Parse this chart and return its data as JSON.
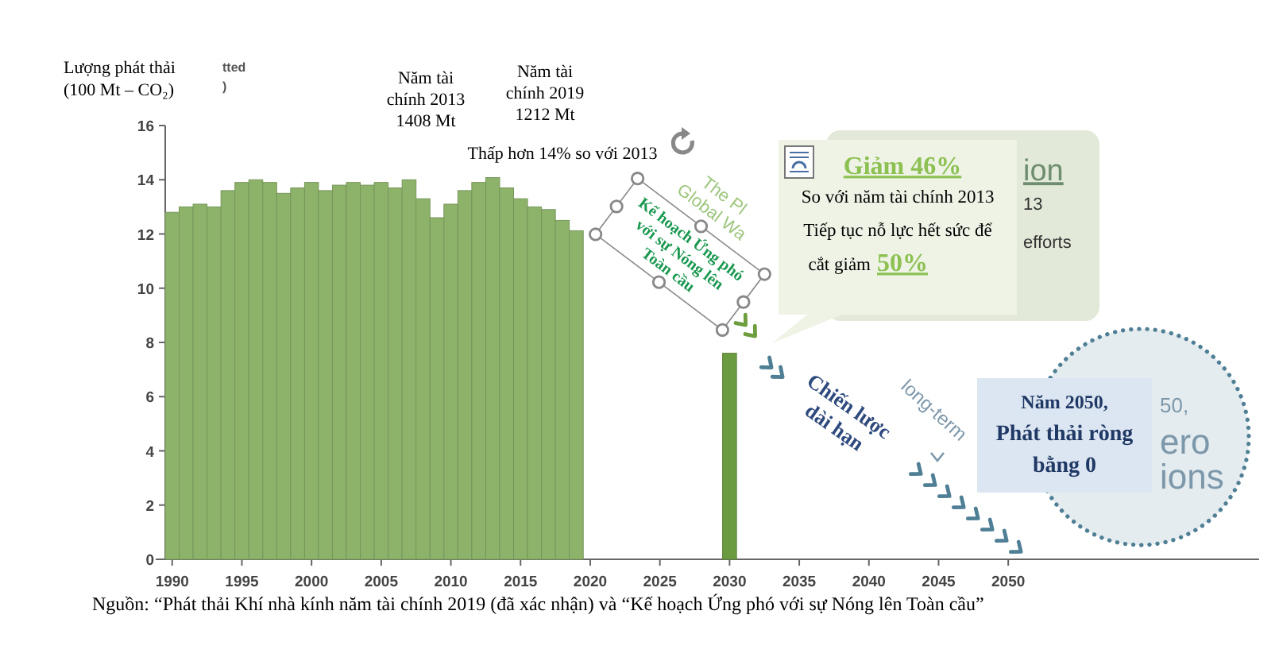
{
  "chart_data": {
    "type": "bar",
    "ylabel": "Lượng phát thải\n(100 Mt – CO₂)",
    "x": [
      1990,
      1991,
      1992,
      1993,
      1994,
      1995,
      1996,
      1997,
      1998,
      1999,
      2000,
      2001,
      2002,
      2003,
      2004,
      2005,
      2006,
      2007,
      2008,
      2009,
      2010,
      2011,
      2012,
      2013,
      2014,
      2015,
      2016,
      2017,
      2018,
      2019,
      2030
    ],
    "values": [
      12.8,
      13.0,
      13.1,
      13.0,
      13.6,
      13.9,
      14.0,
      13.9,
      13.5,
      13.7,
      13.9,
      13.6,
      13.8,
      13.9,
      13.8,
      13.9,
      13.7,
      14.0,
      13.3,
      12.6,
      13.1,
      13.6,
      13.9,
      14.08,
      13.7,
      13.3,
      13.0,
      12.9,
      12.5,
      12.12,
      7.6
    ],
    "colors": [
      "#8db36b",
      "#8db36b",
      "#8db36b",
      "#8db36b",
      "#8db36b",
      "#8db36b",
      "#8db36b",
      "#8db36b",
      "#8db36b",
      "#8db36b",
      "#8db36b",
      "#8db36b",
      "#8db36b",
      "#8db36b",
      "#8db36b",
      "#8db36b",
      "#8db36b",
      "#8db36b",
      "#8db36b",
      "#8db36b",
      "#8db36b",
      "#8db36b",
      "#8db36b",
      "#8db36b",
      "#8db36b",
      "#8db36b",
      "#8db36b",
      "#8db36b",
      "#8db36b",
      "#8db36b",
      "#6b9b41"
    ],
    "xlim": [
      1989.5,
      2068
    ],
    "xticks": [
      1990,
      1995,
      2000,
      2005,
      2010,
      2015,
      2020,
      2025,
      2030,
      2035,
      2040,
      2045,
      2050
    ],
    "ylim": [
      0,
      16
    ],
    "yticks": [
      0,
      2,
      4,
      6,
      8,
      10,
      12,
      14,
      16
    ],
    "annotations": [
      "tted\n)",
      "Năm tài\nchính 2013\n1408 Mt",
      "Năm tài\nchính 2019\n1212 Mt",
      "Thấp hơn 14% so với 2013",
      "Kế hoạch Ứng phó\nvới sự Nóng lên\nToàn cầu",
      "The Pl\nGlobal Wa",
      "Giảm 46%",
      "So với năm tài chính 2013\nTiếp tục nỗ lực hết sức để",
      "cắt giảm",
      "50%",
      "ion",
      "13",
      "efforts",
      "Chiến lược\ndài hạn",
      "long-term",
      "50,",
      "ero\nions",
      "Năm 2050,\nPhát thải ròng\nbằng 0",
      "Nguồn: “Phát thải Khí nhà kính năm tài chính 2019 (đã xác nhận) và “Kế hoạch Ứng phó với sự Nóng lên Toàn cầu”"
    ]
  }
}
